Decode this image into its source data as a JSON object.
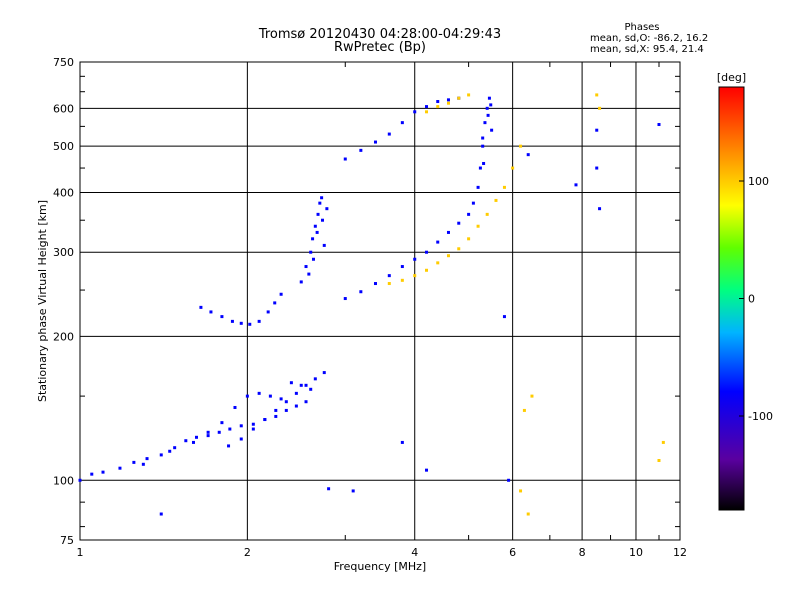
{
  "chart_data": {
    "type": "scatter",
    "title": "Tromsø 20120430 04:28:00-04:29:43",
    "subtitle": "RwPretec (Bp)",
    "xlabel": "Frequency [MHz]",
    "ylabel": "Stationary phase Virtual Height [km]",
    "xscale": "log",
    "yscale": "log",
    "xlim": [
      1,
      12
    ],
    "ylim": [
      75,
      750
    ],
    "xticks": [
      1,
      2,
      4,
      6,
      8,
      10,
      12
    ],
    "xtick_labels": [
      "1",
      "2",
      "4",
      "6",
      "8",
      "10",
      "12"
    ],
    "yticks": [
      75,
      100,
      200,
      300,
      400,
      500,
      600,
      750
    ],
    "ytick_labels": [
      "75",
      "100",
      "200",
      "300",
      "400",
      "500",
      "600",
      "750"
    ],
    "grid": true,
    "phases": {
      "heading": "Phases",
      "line_o": "mean, sd,O: -86.2, 16.2",
      "line_x": "mean, sd,X:  95.4, 21.4"
    },
    "colorbar": {
      "label": "[deg]",
      "range": [
        -180,
        180
      ],
      "ticks": [
        100,
        0,
        -100
      ],
      "tick_labels": [
        "100",
        "0",
        "-100"
      ]
    },
    "series": [
      {
        "name": "O-mode low trace",
        "phase": -100,
        "x": [
          1.0,
          1.05,
          1.1,
          1.18,
          1.25,
          1.32,
          1.4,
          1.48,
          1.55,
          1.62,
          1.7,
          1.78,
          1.86,
          1.95,
          2.05,
          2.15,
          2.25,
          2.35,
          2.45,
          2.55
        ],
        "y": [
          100,
          103,
          104,
          106,
          109,
          111,
          113,
          117,
          121,
          123,
          124,
          126,
          128,
          130,
          131,
          134,
          136,
          140,
          143,
          146
        ]
      },
      {
        "name": "O-mode scatter 100-170",
        "phase": -100,
        "x": [
          1.3,
          1.45,
          1.6,
          1.7,
          1.8,
          1.9,
          2.0,
          2.1,
          2.2,
          2.3,
          2.4,
          2.5,
          2.6,
          1.85,
          1.95,
          2.05,
          2.15,
          2.25,
          2.35,
          2.45,
          2.55,
          2.65,
          2.75
        ],
        "y": [
          108,
          115,
          120,
          126,
          132,
          142,
          150,
          152,
          150,
          148,
          160,
          158,
          155,
          118,
          122,
          128,
          134,
          140,
          146,
          152,
          158,
          163,
          168
        ]
      },
      {
        "name": "O-mode cusp 210-240",
        "phase": -100,
        "x": [
          1.65,
          1.72,
          1.8,
          1.88,
          1.95,
          2.02,
          2.1,
          2.18,
          2.24,
          2.3
        ],
        "y": [
          230,
          225,
          220,
          215,
          213,
          212,
          215,
          225,
          235,
          245
        ]
      },
      {
        "name": "O-mode F spread 250-390",
        "phase": -100,
        "x": [
          2.5,
          2.55,
          2.6,
          2.62,
          2.65,
          2.68,
          2.7,
          2.72,
          2.75,
          2.58,
          2.63,
          2.67,
          2.73,
          2.78
        ],
        "y": [
          260,
          280,
          300,
          320,
          340,
          360,
          380,
          390,
          310,
          270,
          290,
          330,
          350,
          370
        ]
      },
      {
        "name": "O-mode F2 trace",
        "phase": -100,
        "x": [
          3.0,
          3.2,
          3.4,
          3.6,
          3.8,
          4.0,
          4.2,
          4.4,
          4.6,
          4.8,
          5.0,
          5.1,
          5.2,
          5.25,
          5.3
        ],
        "y": [
          240,
          248,
          258,
          268,
          280,
          290,
          300,
          315,
          330,
          345,
          360,
          380,
          410,
          450,
          500
        ]
      },
      {
        "name": "O-mode upper trace",
        "phase": -100,
        "x": [
          3.0,
          3.2,
          3.4,
          3.6,
          3.8,
          4.0,
          4.2,
          4.4,
          4.6,
          4.8
        ],
        "y": [
          470,
          490,
          510,
          530,
          560,
          590,
          605,
          620,
          625,
          630
        ]
      },
      {
        "name": "O-mode high cluster",
        "phase": -100,
        "x": [
          5.3,
          5.35,
          5.4,
          5.45,
          5.5,
          5.32,
          5.42,
          5.48
        ],
        "y": [
          520,
          560,
          600,
          630,
          540,
          460,
          580,
          610
        ]
      },
      {
        "name": "X-mode F2 trace",
        "phase": 100,
        "x": [
          3.6,
          3.8,
          4.0,
          4.2,
          4.4,
          4.6,
          4.8,
          5.0,
          5.2,
          5.4,
          5.6,
          5.8,
          6.0,
          6.2
        ],
        "y": [
          258,
          262,
          268,
          275,
          285,
          295,
          305,
          320,
          340,
          360,
          385,
          410,
          450,
          500
        ]
      },
      {
        "name": "X-mode upper trace",
        "phase": 100,
        "x": [
          4.2,
          4.4,
          4.6,
          4.8,
          5.0
        ],
        "y": [
          590,
          605,
          615,
          630,
          640
        ]
      },
      {
        "name": "X-mode high frequency scatter",
        "phase": 100,
        "x": [
          6.3,
          6.5,
          8.5,
          8.6,
          11.0,
          11.2,
          6.2,
          6.4
        ],
        "y": [
          140,
          150,
          640,
          600,
          110,
          120,
          95,
          85
        ]
      },
      {
        "name": "Noise points",
        "phase": -100,
        "x": [
          7.8,
          8.5,
          8.5,
          8.6,
          11.0,
          6.4,
          5.8,
          5.9,
          3.1,
          3.8,
          4.2,
          2.8,
          1.4
        ],
        "y": [
          415,
          540,
          450,
          370,
          555,
          480,
          220,
          100,
          95,
          120,
          105,
          96,
          85
        ]
      }
    ]
  }
}
